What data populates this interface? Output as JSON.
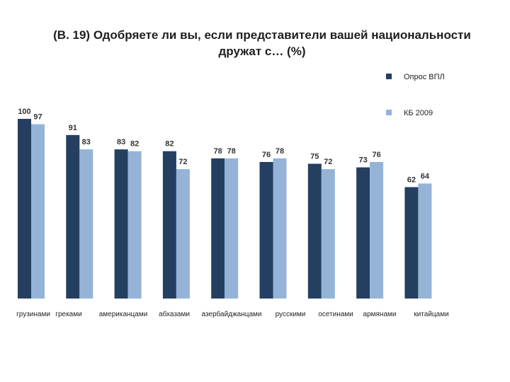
{
  "title_line1": "(В. 19)  Одобряете ли вы, если представители вашей национальности",
  "title_line2": "дружат с… (%)",
  "colors": {
    "series1": "#243F60",
    "series2": "#95B3D7"
  },
  "chart_data": {
    "type": "bar",
    "title": "(В. 19)  Одобряете ли вы, если представители вашей национальности дружат с… (%)",
    "categories": [
      "грузинами",
      "греками",
      "американцами",
      "абхазами",
      "азербайджанцами",
      "русскими",
      "осетинами",
      "армянами",
      "китайцами"
    ],
    "series": [
      {
        "name": "Опрос ВПЛ",
        "values": [
          100,
          91,
          83,
          82,
          78,
          76,
          75,
          73,
          62
        ]
      },
      {
        "name": "КБ 2009",
        "values": [
          97,
          83,
          82,
          72,
          78,
          78,
          72,
          76,
          64
        ]
      }
    ],
    "ylim": [
      0,
      100
    ],
    "grid": false,
    "legend_position": "right"
  }
}
